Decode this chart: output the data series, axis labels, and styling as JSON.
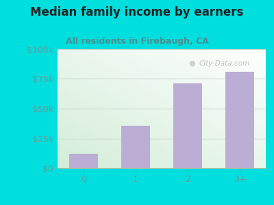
{
  "categories": [
    "0",
    "1",
    "2",
    "3+"
  ],
  "values": [
    12000,
    35500,
    71000,
    81000
  ],
  "bar_color": "#bbadd4",
  "title": "Median family income by earners",
  "subtitle": "All residents in Firebaugh, CA",
  "title_color": "#222222",
  "subtitle_color": "#4a9090",
  "outer_bg_color": "#00dede",
  "ylabel_ticks": [
    0,
    25000,
    50000,
    75000,
    100000
  ],
  "ylabel_labels": [
    "$0",
    "$25k",
    "$50k",
    "$75k",
    "$100k"
  ],
  "ylim": [
    0,
    100000
  ],
  "watermark": "City-Data.com",
  "watermark_color": "#b0b8b8",
  "grid_color": "#d0d8d0",
  "tick_label_color": "#6a9898",
  "title_fontsize": 12,
  "subtitle_fontsize": 9
}
